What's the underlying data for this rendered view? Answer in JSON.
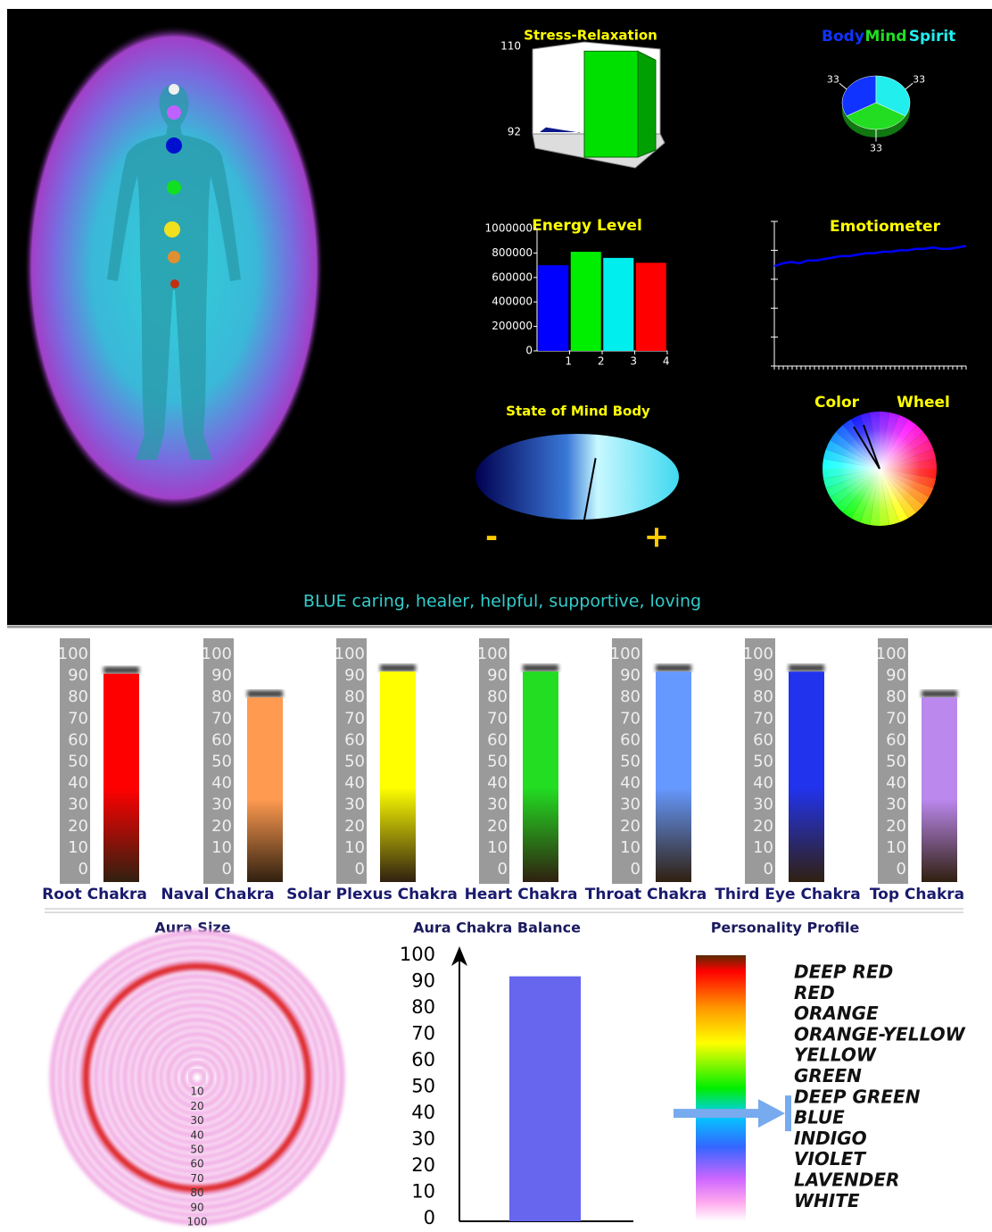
{
  "chart_data": [
    {
      "type": "bar3d",
      "title": "Stress-Relaxation",
      "values": [
        93,
        109
      ],
      "colors": [
        "#0a1a8a",
        "#00e000"
      ],
      "ylim": [
        92,
        110
      ],
      "yticks": [
        92,
        110
      ]
    },
    {
      "type": "pie",
      "categories": [
        "Body",
        "Mind",
        "Spirit"
      ],
      "values": [
        33,
        33,
        33
      ],
      "colors": [
        "#1133ff",
        "#22dd22",
        "#22eeee"
      ]
    },
    {
      "type": "bar",
      "title": "Energy Level",
      "categories": [
        "1",
        "2",
        "3",
        "4"
      ],
      "values": [
        700000,
        810000,
        760000,
        720000
      ],
      "colors": [
        "#0000ff",
        "#00ee00",
        "#00eeee",
        "#ff0000"
      ],
      "ylim": [
        0,
        1000000
      ],
      "yticks": [
        0,
        200000,
        400000,
        600000,
        800000,
        1000000
      ]
    },
    {
      "type": "line",
      "title": "Emotiometer",
      "values": [
        69,
        71,
        72,
        71,
        73,
        73,
        74,
        75,
        76,
        76,
        77,
        78,
        78,
        79,
        79,
        80,
        80,
        81,
        81,
        82,
        81,
        81,
        82,
        83
      ],
      "color": "#0000ff",
      "ylim": [
        0,
        100
      ]
    },
    {
      "type": "gauge",
      "title": "State of Mind Body",
      "value": 0.13,
      "xlim": [
        -1,
        1
      ],
      "min_label": "-",
      "max_label": "+"
    },
    {
      "type": "wheel",
      "title": [
        "Color",
        "Wheel"
      ]
    },
    {
      "type": "thermometer",
      "categories": [
        "Root Chakra",
        "Naval Chakra",
        "Solar Plexus Chakra",
        "Heart Chakra",
        "Throat Chakra",
        "Third Eye Chakra",
        "Top Chakra"
      ],
      "values": [
        91,
        80,
        92,
        92,
        92,
        92,
        80
      ],
      "colors": [
        "#ff0000",
        "#ff9a50",
        "#ffff00",
        "#22dd22",
        "#6699ff",
        "#2233ee",
        "#bb88ee"
      ],
      "ylim": [
        0,
        100
      ],
      "yticks": [
        0,
        10,
        20,
        30,
        40,
        50,
        60,
        70,
        80,
        90,
        100
      ]
    },
    {
      "type": "rings",
      "title": "Aura Size",
      "value": 77,
      "ylim": [
        0,
        100
      ],
      "yticks": [
        10,
        20,
        30,
        40,
        50,
        60,
        70,
        80,
        90,
        100
      ]
    },
    {
      "type": "bar",
      "title": "Aura Chakra Balance",
      "values": [
        92
      ],
      "color": "#6666ee",
      "ylim": [
        0,
        100
      ],
      "yticks": [
        0,
        10,
        20,
        30,
        40,
        50,
        60,
        70,
        80,
        90,
        100
      ]
    },
    {
      "type": "profile",
      "title": "Personality Profile",
      "categories": [
        "DEEP RED",
        "RED",
        "ORANGE",
        "ORANGE-YELLOW",
        "YELLOW",
        "GREEN",
        "DEEP GREEN",
        "BLUE",
        "INDIGO",
        "VIOLET",
        "LAVENDER",
        "WHITE"
      ],
      "pointer_index": 7
    }
  ],
  "caption": "BLUE caring, healer, helpful, supportive, loving"
}
